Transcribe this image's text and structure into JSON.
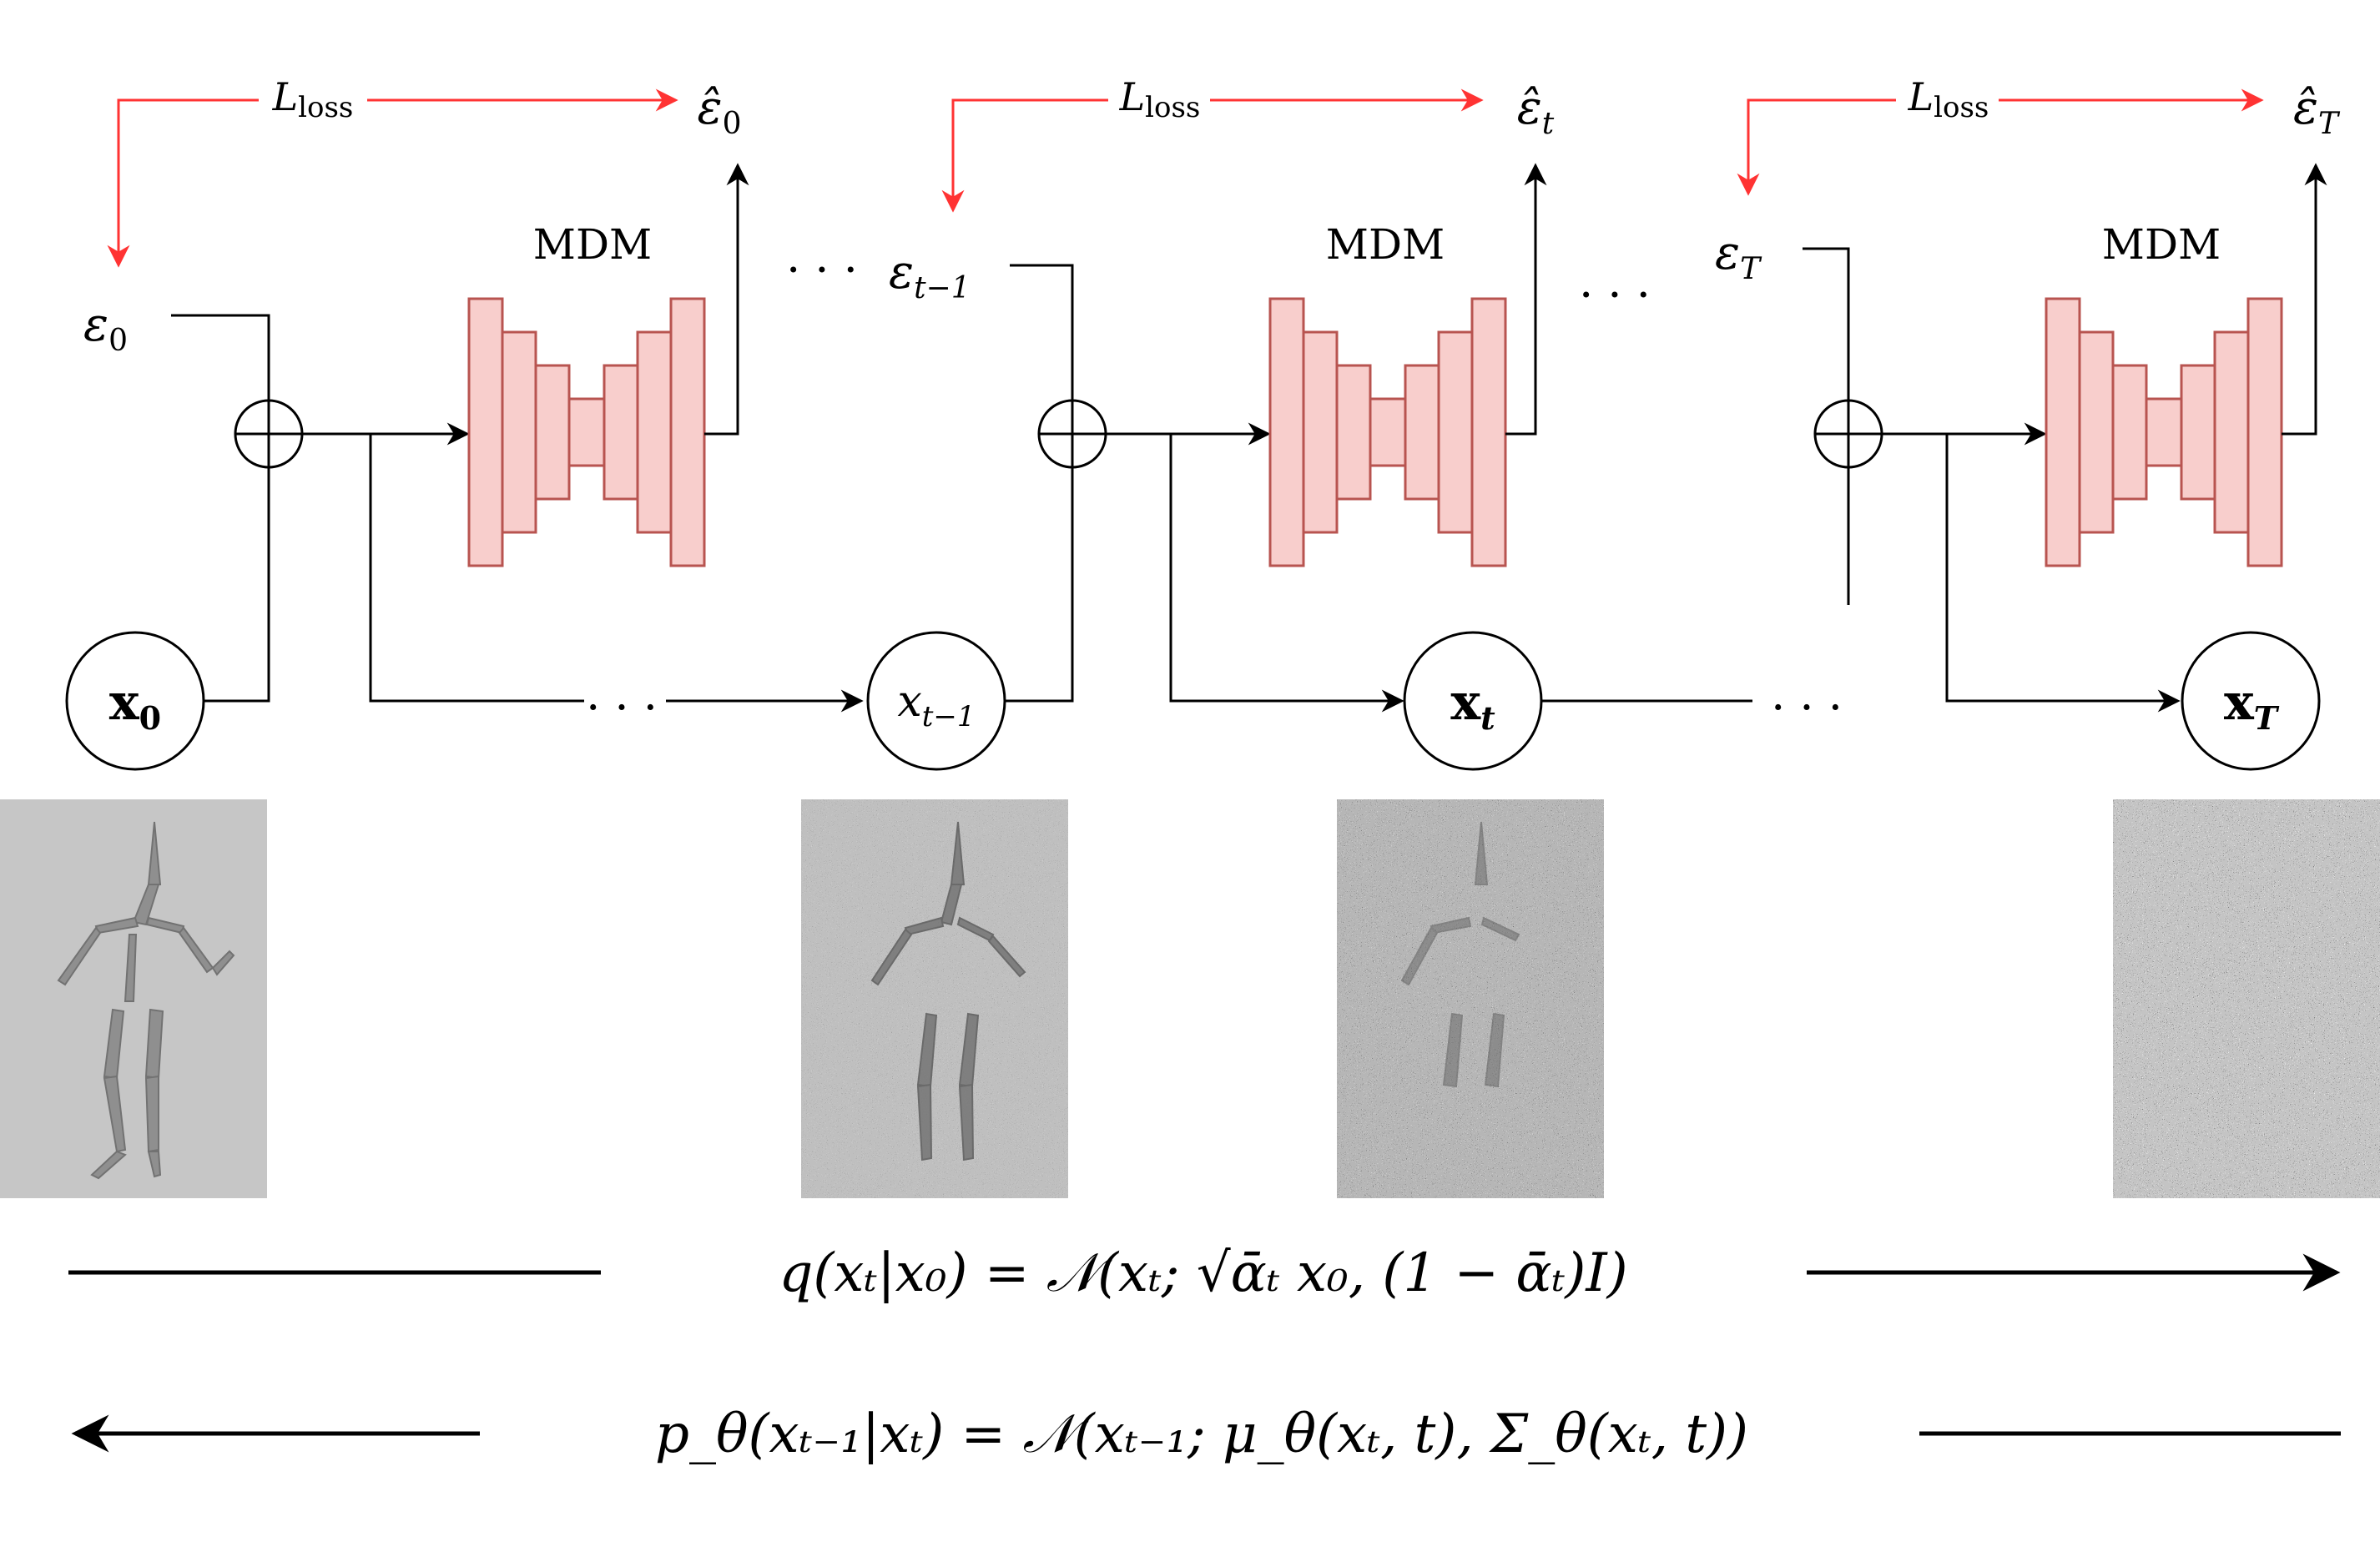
{
  "colors": {
    "block_fill": "#f8cecc",
    "block_stroke": "#b85450",
    "loss_arrow": "#ff3333",
    "line": "#000000"
  },
  "stages": [
    {
      "model_label": "MDM",
      "loss_label": {
        "main": "L",
        "sub": "loss"
      },
      "eps_hat": {
        "main": "ε̂",
        "sub": "0"
      },
      "eps_in": {
        "main": "ε",
        "sub": "0"
      },
      "x_node": {
        "main": "x",
        "sub": "0"
      }
    },
    {
      "model_label": "MDM",
      "loss_label": {
        "main": "L",
        "sub": "loss"
      },
      "eps_hat": {
        "main": "ε̂",
        "sub": "t"
      },
      "eps_in": {
        "main": "ε",
        "sub": "t−1"
      },
      "x_node": {
        "main": "x",
        "sub": "t−1"
      }
    },
    {
      "model_label": "MDM",
      "loss_label": {
        "main": "L",
        "sub": "loss"
      },
      "eps_hat": {
        "main": "ε̂",
        "sub": "T"
      },
      "eps_in": {
        "main": "ε",
        "sub": "T"
      },
      "x_node": {
        "main": "x",
        "sub": "t"
      }
    }
  ],
  "x_T_node": {
    "main": "x",
    "sub": "T"
  },
  "ellipses": {
    "top_1": "· · ·",
    "top_2": "· · ·",
    "bottom_1": ". . .",
    "bottom_2": ". . ."
  },
  "noise_panels": [
    {
      "name": "noise-level-0",
      "noise": 0.0
    },
    {
      "name": "noise-level-t-minus-1",
      "noise": 0.35
    },
    {
      "name": "noise-level-t",
      "noise": 0.75
    },
    {
      "name": "noise-level-T",
      "noise": 1.0
    }
  ],
  "equations": {
    "forward": "q(xₜ|x₀) = 𝒩(xₜ; √ᾱₜ x₀, (1 − ᾱₜ)I)",
    "reverse": "p_θ(xₜ₋₁|xₜ) = 𝒩(xₜ₋₁; μ_θ(xₜ, t), Σ_θ(xₜ, t))"
  }
}
